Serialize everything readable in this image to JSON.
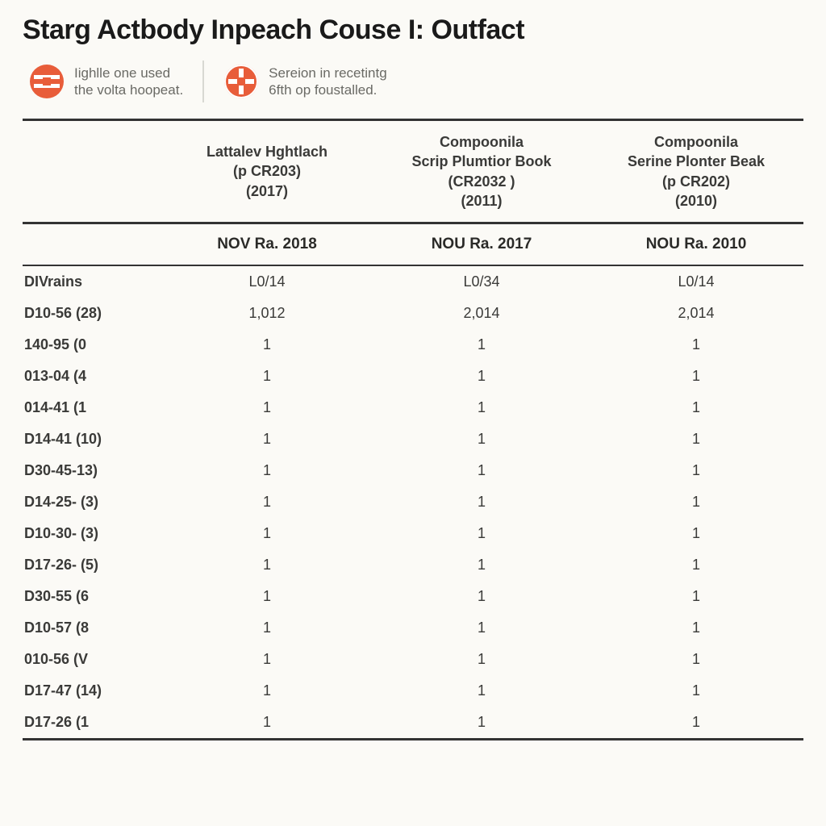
{
  "title": "Starg Actbody Inpeach Couse I: Outfact",
  "colors": {
    "accent": "#e85d3a",
    "text": "#333333",
    "muted": "#6a6a65",
    "background": "#fbfaf6",
    "divider": "#d8d8d2",
    "rule": "#333333"
  },
  "legend": [
    {
      "icon": "stripe-circle",
      "line1": "Iighlle one used",
      "line2": "the volta hoopeat."
    },
    {
      "icon": "cross-circle",
      "line1": "Sereion in recetintg",
      "line2": "6fth op foustalled."
    }
  ],
  "table": {
    "columns": [
      {
        "line1": "Lattalev Hghtlach",
        "line2": "(p CR203)",
        "line3": "(2017)",
        "subhead": "NOV Ra. 2018"
      },
      {
        "line1": "Compoonila",
        "line2": "Scrip Plumtior Book",
        "line3": "(CR2032 )",
        "line4": "(2011)",
        "subhead": "NOU Ra. 2017"
      },
      {
        "line1": "Compoonila",
        "line2": "Serine Plonter Beak",
        "line3": "(p CR202)",
        "line4": "(2010)",
        "subhead": "NOU Ra. 2010"
      }
    ],
    "rows": [
      {
        "label": "DIVrains",
        "v": [
          "L0/14",
          "L0/34",
          "L0/14"
        ]
      },
      {
        "label": "D10-56 (28)",
        "v": [
          "1,012",
          "2,014",
          "2,014"
        ]
      },
      {
        "label": "140-95 (0",
        "v": [
          "1",
          "1",
          "1"
        ]
      },
      {
        "label": "013-04 (4",
        "v": [
          "1",
          "1",
          "1"
        ]
      },
      {
        "label": "014-41 (1",
        "v": [
          "1",
          "1",
          "1"
        ]
      },
      {
        "label": "D14-41 (10)",
        "v": [
          "1",
          "1",
          "1"
        ]
      },
      {
        "label": "D30-45-13)",
        "v": [
          "1",
          "1",
          "1"
        ]
      },
      {
        "label": "D14-25- (3)",
        "v": [
          "1",
          "1",
          "1"
        ]
      },
      {
        "label": "D10-30- (3)",
        "v": [
          "1",
          "1",
          "1"
        ]
      },
      {
        "label": "D17-26- (5)",
        "v": [
          "1",
          "1",
          "1"
        ]
      },
      {
        "label": "D30-55 (6",
        "v": [
          "1",
          "1",
          "1"
        ]
      },
      {
        "label": "D10-57 (8",
        "v": [
          "1",
          "1",
          "1"
        ]
      },
      {
        "label": "010-56 (V",
        "v": [
          "1",
          "1",
          "1"
        ]
      },
      {
        "label": "D17-47 (14)",
        "v": [
          "1",
          "1",
          "1"
        ]
      },
      {
        "label": "D17-26 (1",
        "v": [
          "1",
          "1",
          "1"
        ]
      }
    ]
  }
}
